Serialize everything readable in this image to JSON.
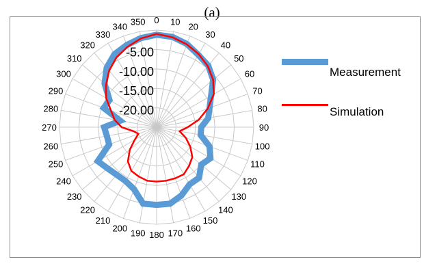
{
  "chart_data": {
    "type": "radar",
    "title": "(a)",
    "angle_ticks": [
      "0",
      "10",
      "20",
      "30",
      "40",
      "50",
      "60",
      "70",
      "80",
      "90",
      "100",
      "110",
      "120",
      "130",
      "140",
      "150",
      "160",
      "170",
      "180",
      "190",
      "200",
      "210",
      "220",
      "230",
      "240",
      "250",
      "260",
      "270",
      "280",
      "290",
      "300",
      "310",
      "320",
      "330",
      "340",
      "350"
    ],
    "radial_ticks": [
      "-5.00",
      "-10.00",
      "-15.00",
      "-20.00"
    ],
    "rlim": [
      -25,
      0
    ],
    "grid": true,
    "legend_position": "right",
    "series": [
      {
        "name": "Measurement",
        "color": "#5b9bd5",
        "values": [
          -1.2,
          -1.4,
          -2.2,
          -3.5,
          -4.3,
          -6.0,
          -8.8,
          -10.5,
          -11.5,
          -13.5,
          -13.5,
          -10.5,
          -9.0,
          -10.0,
          -8.0,
          -8.0,
          -6.3,
          -5.0,
          -5.0,
          -5.0,
          -8.0,
          -9.0,
          -9.0,
          -8.5,
          -7.5,
          -12.0,
          -12.0,
          -11.5,
          -15.5,
          -10.5,
          -11.0,
          -7.5,
          -5.0,
          -3.3,
          -2.5,
          -1.7
        ]
      },
      {
        "name": "Simulation",
        "color": "#ff0000",
        "values": [
          -1.0,
          -1.5,
          -2.3,
          -3.3,
          -4.5,
          -6.0,
          -8.0,
          -11.0,
          -14.0,
          -17.0,
          -19.0,
          -17.0,
          -15.0,
          -13.0,
          -12.0,
          -11.0,
          -11.0,
          -11.0,
          -11.0,
          -11.0,
          -11.5,
          -12.0,
          -13.5,
          -16.0,
          -18.5,
          -20.0,
          -19.0,
          -16.0,
          -14.0,
          -12.5,
          -10.0,
          -8.0,
          -6.0,
          -4.3,
          -3.0,
          -1.8
        ]
      }
    ]
  }
}
